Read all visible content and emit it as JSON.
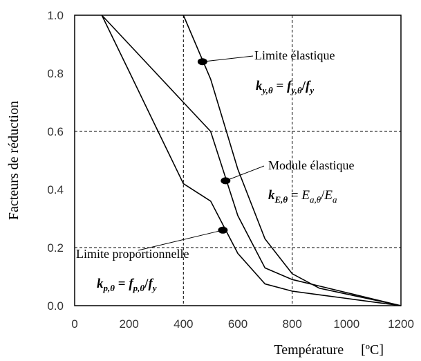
{
  "chart_data": {
    "type": "line",
    "title": "",
    "xlabel": "Température     [ºC]",
    "ylabel": "Facteurs de réduction",
    "xlim": [
      0,
      1200
    ],
    "ylim": [
      0.0,
      1.0
    ],
    "x_ticks": [
      "0",
      "200",
      "400",
      "600",
      "800",
      "1000",
      "1200"
    ],
    "y_ticks": [
      "0.0",
      "0.2",
      "0.4",
      "0.6",
      "0.8",
      "1.0"
    ],
    "grid": "dashed at x=400, 800 and y=0.2, 0.6",
    "series": [
      {
        "x": [
          400,
          500,
          600,
          700,
          800,
          900,
          1000,
          1100,
          1200
        ],
        "y": [
          1.0,
          0.78,
          0.47,
          0.23,
          0.11,
          0.06,
          0.04,
          0.02,
          0.0
        ]
      },
      {
        "x": [
          100,
          200,
          300,
          400,
          500,
          600,
          700,
          800,
          900,
          1000,
          1100,
          1200
        ],
        "y": [
          1.0,
          0.9,
          0.8,
          0.7,
          0.6,
          0.31,
          0.13,
          0.09,
          0.0675,
          0.045,
          0.0225,
          0.0
        ]
      },
      {
        "x": [
          100,
          200,
          300,
          400,
          500,
          600,
          700,
          800,
          900,
          1000,
          1100,
          1200
        ],
        "y": [
          1.0,
          0.807,
          0.613,
          0.42,
          0.36,
          0.18,
          0.075,
          0.05,
          0.0375,
          0.025,
          0.0125,
          0.0
        ]
      }
    ],
    "annotations": [
      {
        "label": "Limite élastique",
        "formula": "k_{y,θ} = f_{y,θ}/f_y",
        "point": [
          470,
          0.84
        ]
      },
      {
        "label": "Module élastique",
        "formula": "k_{E,θ} = E_{a,θ}/E_a",
        "point": [
          555,
          0.43
        ]
      },
      {
        "label": "Limite proportionnelle",
        "formula": "k_{p,θ} = f_{p,θ}/f_y",
        "point": [
          545,
          0.26
        ]
      }
    ]
  }
}
